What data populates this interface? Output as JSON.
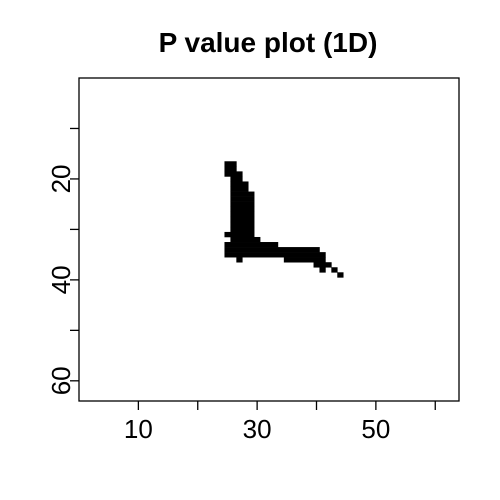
{
  "chart_data": {
    "type": "heatmap",
    "title": "P value plot (1D)",
    "xlabel": "",
    "ylabel": "",
    "xlim": [
      0,
      64
    ],
    "ylim": [
      64,
      0
    ],
    "y_reversed": true,
    "grid": false,
    "legend": "none",
    "x_ticks": [
      10,
      20,
      30,
      40,
      50,
      60
    ],
    "x_tick_labels": [
      {
        "value": 10,
        "label": "10"
      },
      {
        "value": 30,
        "label": "30"
      },
      {
        "value": 50,
        "label": "50"
      }
    ],
    "y_ticks": [
      10,
      20,
      30,
      40,
      50,
      60
    ],
    "y_tick_labels": [
      {
        "value": 20,
        "label": "20"
      },
      {
        "value": 40,
        "label": "40"
      },
      {
        "value": 60,
        "label": "60"
      }
    ],
    "colors": {
      "cell": "#000000",
      "background": "#ffffff",
      "axis": "#000000"
    },
    "significant_cells": [
      {
        "row": 17,
        "x_start": 25,
        "x_end": 26
      },
      {
        "row": 18,
        "x_start": 25,
        "x_end": 26
      },
      {
        "row": 19,
        "x_start": 25,
        "x_end": 27
      },
      {
        "row": 20,
        "x_start": 26,
        "x_end": 27
      },
      {
        "row": 21,
        "x_start": 26,
        "x_end": 28
      },
      {
        "row": 22,
        "x_start": 26,
        "x_end": 28
      },
      {
        "row": 23,
        "x_start": 26,
        "x_end": 29
      },
      {
        "row": 24,
        "x_start": 26,
        "x_end": 29
      },
      {
        "row": 25,
        "x_start": 26,
        "x_end": 29
      },
      {
        "row": 26,
        "x_start": 26,
        "x_end": 29
      },
      {
        "row": 27,
        "x_start": 26,
        "x_end": 29
      },
      {
        "row": 28,
        "x_start": 26,
        "x_end": 29
      },
      {
        "row": 29,
        "x_start": 26,
        "x_end": 29
      },
      {
        "row": 30,
        "x_start": 26,
        "x_end": 29
      },
      {
        "row": 31,
        "x_start": 25,
        "x_end": 29
      },
      {
        "row": 32,
        "x_start": 26,
        "x_end": 30
      },
      {
        "row": 33,
        "x_start": 25,
        "x_end": 33
      },
      {
        "row": 34,
        "x_start": 25,
        "x_end": 40
      },
      {
        "row": 35,
        "x_start": 25,
        "x_end": 41
      },
      {
        "row": 36,
        "x_start": 27,
        "x_end": 27
      },
      {
        "row": 36,
        "x_start": 35,
        "x_end": 41
      },
      {
        "row": 37,
        "x_start": 40,
        "x_end": 42
      },
      {
        "row": 38,
        "x_start": 41,
        "x_end": 41
      },
      {
        "row": 38,
        "x_start": 43,
        "x_end": 43
      },
      {
        "row": 39,
        "x_start": 44,
        "x_end": 44
      }
    ]
  }
}
